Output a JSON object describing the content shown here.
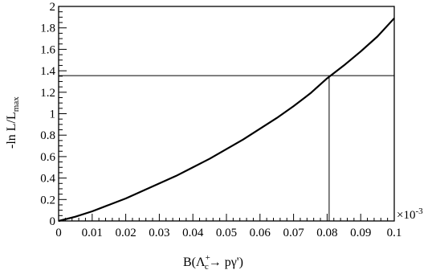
{
  "chart_data": {
    "type": "line",
    "title": "",
    "xlabel": {
      "prefix": "B(",
      "symbol": "Λ",
      "superscript": "+",
      "subscript": "c",
      "arrow": "→",
      "suffix": " pγ')"
    },
    "ylabel": {
      "main": "-ln L/L",
      "subscript": "max"
    },
    "x_multiplier_label": "×10",
    "x_multiplier_exponent": "-3",
    "xlim": [
      0,
      0.1
    ],
    "ylim": [
      0,
      2
    ],
    "x_ticks": [
      "0",
      "0.01",
      "0.02",
      "0.03",
      "0.04",
      "0.05",
      "0.06",
      "0.07",
      "0.08",
      "0.09",
      "0.1"
    ],
    "y_ticks": [
      "0",
      "0.2",
      "0.4",
      "0.6",
      "0.8",
      "1",
      "1.2",
      "1.4",
      "1.6",
      "1.8",
      "2"
    ],
    "series": [
      {
        "x": [
          0,
          0.005,
          0.01,
          0.015,
          0.02,
          0.025,
          0.03,
          0.035,
          0.04,
          0.045,
          0.05,
          0.055,
          0.06,
          0.065,
          0.07,
          0.075,
          0.08,
          0.085,
          0.09,
          0.095,
          0.1
        ],
        "y": [
          0,
          0.04,
          0.09,
          0.15,
          0.21,
          0.28,
          0.35,
          0.42,
          0.5,
          0.58,
          0.67,
          0.76,
          0.86,
          0.96,
          1.07,
          1.19,
          1.33,
          1.45,
          1.58,
          1.72,
          1.89
        ]
      }
    ],
    "reference_lines": {
      "horizontal_y": 1.355,
      "vertical_x": 0.0806
    },
    "grid": false,
    "legend": "none"
  }
}
